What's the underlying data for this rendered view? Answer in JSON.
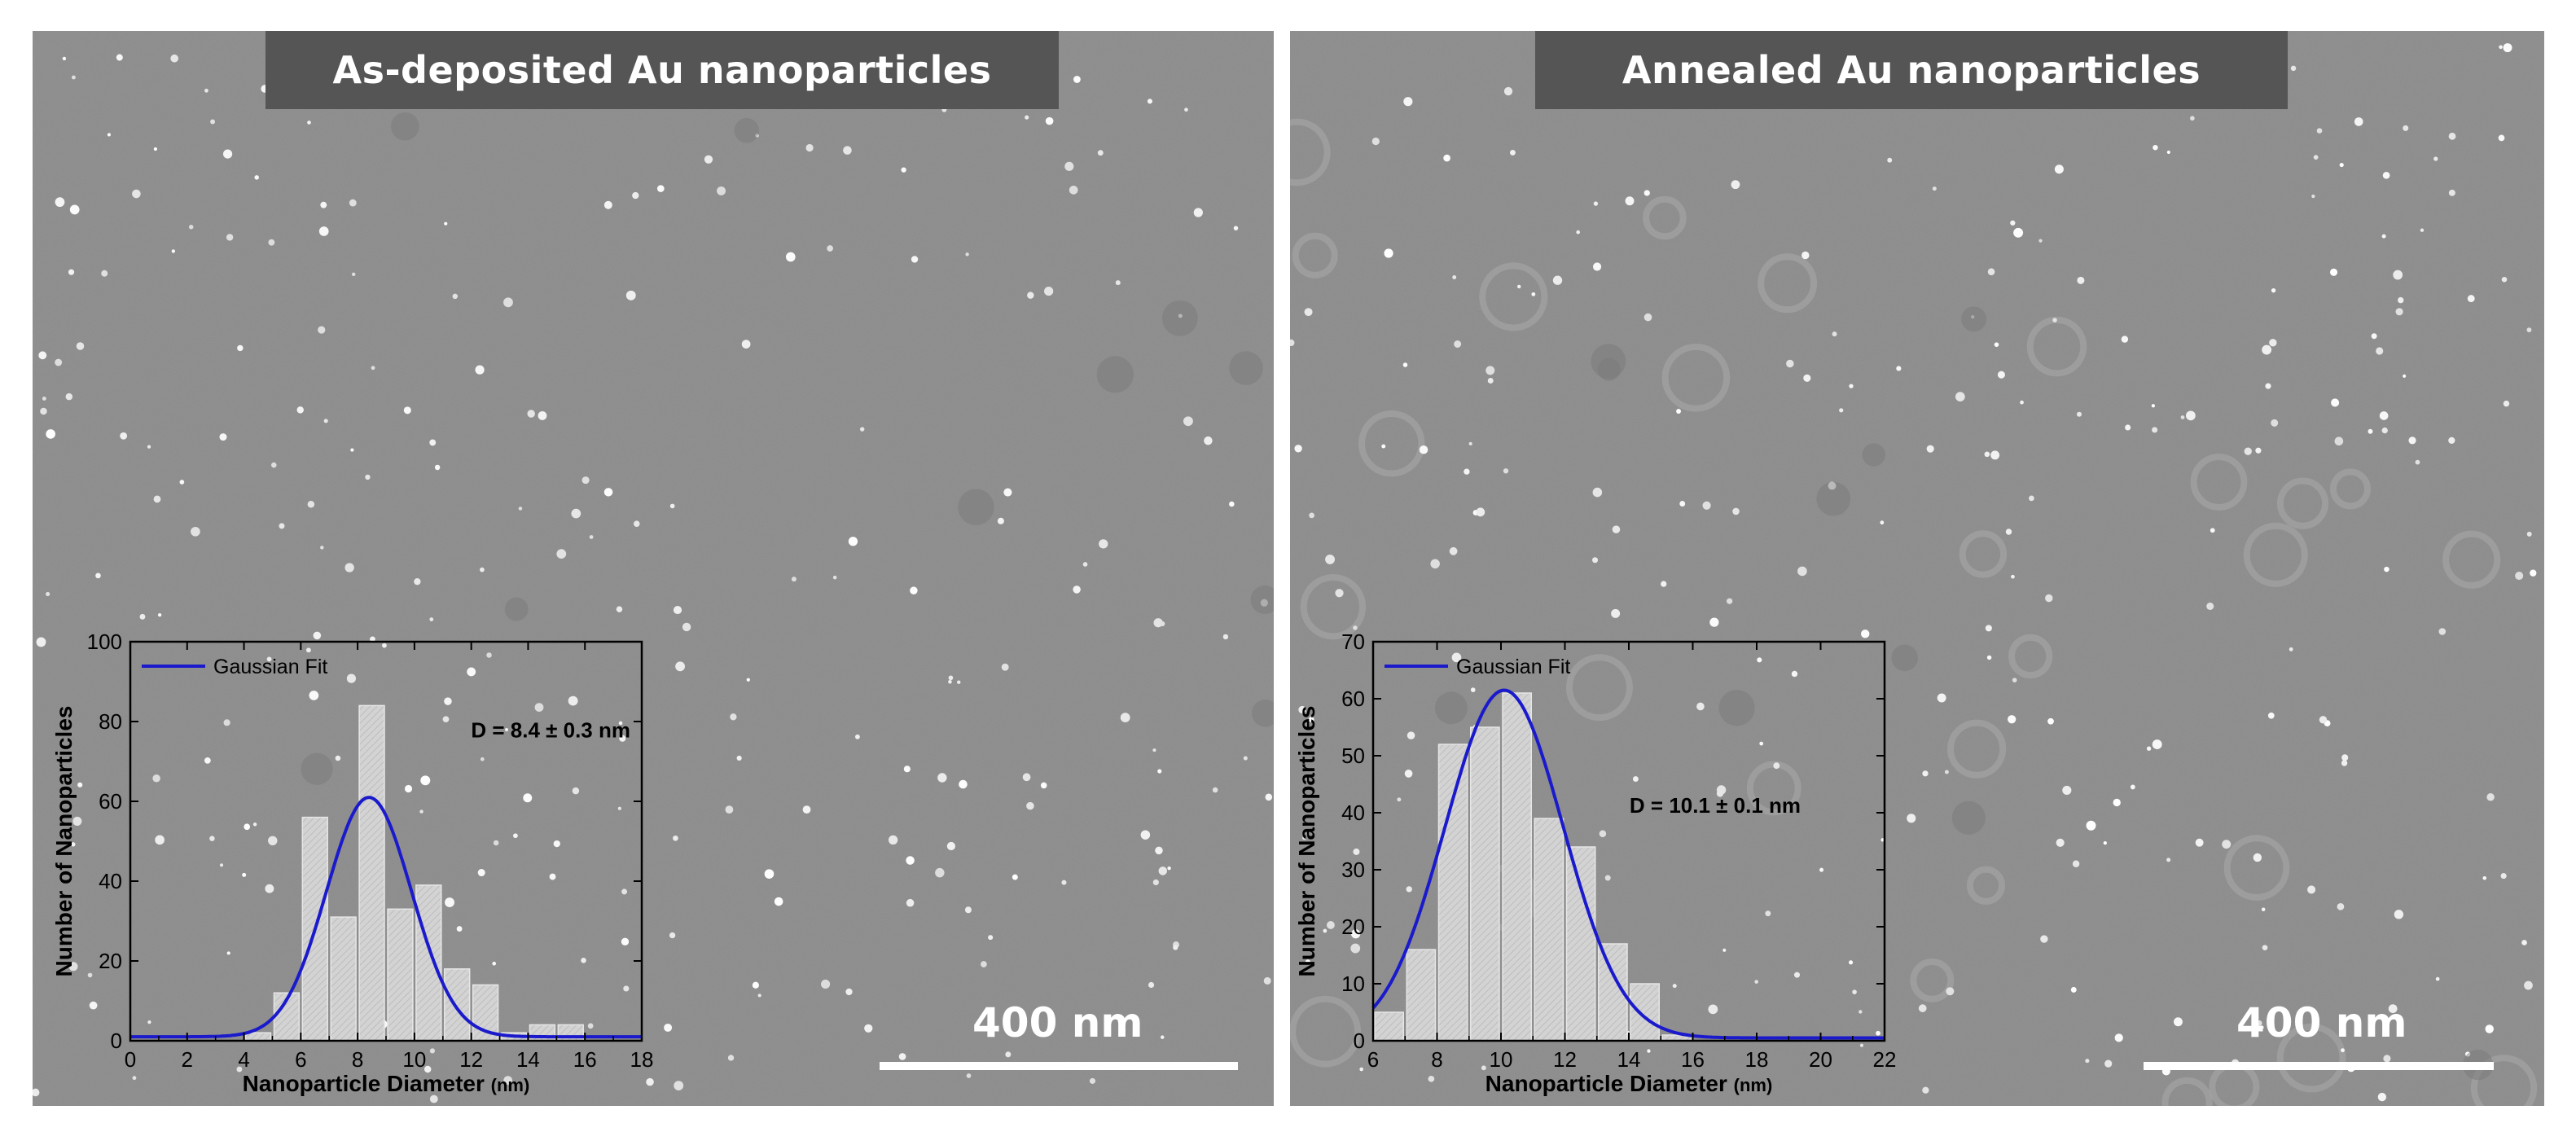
{
  "panels": [
    {
      "title": "As-deposited Au nanoparticles",
      "scale_bar_label": "400 nm"
    },
    {
      "title": "Annealed Au nanoparticles",
      "scale_bar_label": "400 nm"
    }
  ],
  "chart_data": [
    {
      "type": "bar",
      "xlabel_main": "Nanoparticle Diameter",
      "xlabel_unit": "(nm)",
      "ylabel": "Number of Nanoparticles",
      "xlim": [
        0,
        18
      ],
      "ylim": [
        0,
        100
      ],
      "xticks": [
        0,
        2,
        4,
        6,
        8,
        10,
        12,
        14,
        16,
        18
      ],
      "yticks": [
        0,
        20,
        40,
        60,
        80,
        100
      ],
      "bin_width": 1,
      "bin_centers": [
        4.5,
        5.5,
        6.5,
        7.5,
        8.5,
        9.5,
        10.5,
        11.5,
        12.5,
        13.5,
        14.5,
        15.5,
        16.5
      ],
      "values": [
        2,
        12,
        56,
        31,
        84,
        33,
        39,
        18,
        14,
        2,
        4,
        4,
        0
      ],
      "fit": {
        "name": "Gaussian Fit",
        "type": "gaussian",
        "center": 8.4,
        "amplitude": 60,
        "sigma": 1.5,
        "baseline": 1,
        "color": "#1a1acc"
      },
      "annotation": "D = 8.4 ± 0.3 nm",
      "legend_position": "top-left"
    },
    {
      "type": "bar",
      "xlabel_main": "Nanoparticle Diameter",
      "xlabel_unit": "(nm)",
      "ylabel": "Number of Nanoparticles",
      "xlim": [
        6,
        22
      ],
      "ylim": [
        0,
        70
      ],
      "xticks": [
        6,
        8,
        10,
        12,
        14,
        16,
        18,
        20,
        22
      ],
      "yticks": [
        0,
        10,
        20,
        30,
        40,
        50,
        60,
        70
      ],
      "bin_width": 1,
      "bin_centers": [
        6.5,
        7.5,
        8.5,
        9.5,
        10.5,
        11.5,
        12.5,
        13.5,
        14.5,
        15.5
      ],
      "values": [
        5,
        16,
        52,
        55,
        61,
        39,
        34,
        17,
        10,
        1
      ],
      "fit": {
        "name": "Gaussian Fit",
        "type": "gaussian",
        "center": 10.1,
        "amplitude": 61,
        "sigma": 1.85,
        "baseline": 0.5,
        "color": "#1a1acc"
      },
      "annotation": "D = 10.1 ± 0.1 nm",
      "legend_position": "top-left"
    }
  ]
}
